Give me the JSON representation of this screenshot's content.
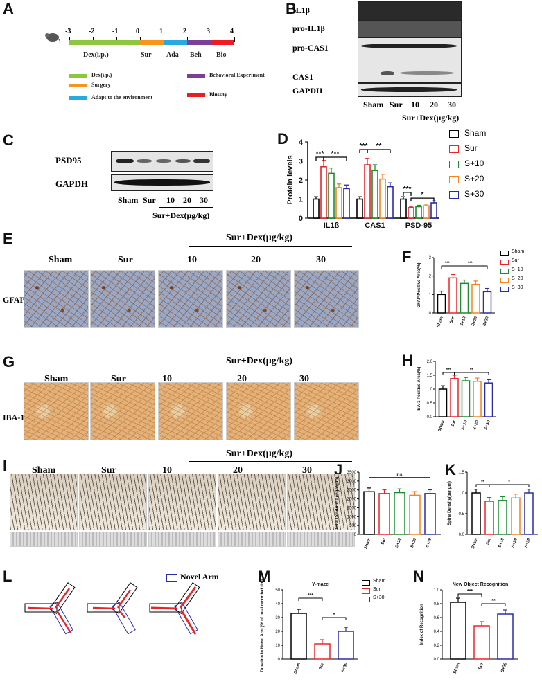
{
  "panels": {
    "A": "A",
    "B": "B",
    "C": "C",
    "D": "D",
    "E": "E",
    "F": "F",
    "G": "G",
    "H": "H",
    "I": "I",
    "J": "J",
    "K": "K",
    "L": "L",
    "M": "M",
    "N": "N"
  },
  "timeline": {
    "ticks": [
      "-3",
      "-2",
      "-1",
      "0",
      "1",
      "2",
      "3",
      "4"
    ],
    "phases": [
      "Dex(i.p.)",
      "Sur",
      "Ada",
      "Beh",
      "Bio"
    ],
    "legend": [
      "Dex(i.p.)",
      "Surgery",
      "Adapt to the environment",
      "Behavioral Experiment",
      "Biossay"
    ],
    "colors": [
      "#8dc63f",
      "#f7941d",
      "#27aae1",
      "#7b3f98",
      "#ed1c24"
    ]
  },
  "blotB": {
    "rows": [
      "IL1β",
      "pro-IL1β",
      "pro-CAS1",
      "CAS1",
      "GAPDH"
    ],
    "lanes": [
      "Sham",
      "Sur",
      "10",
      "20",
      "30"
    ],
    "group": "Sur+Dex(μg/kg)"
  },
  "blotC": {
    "rows": [
      "PSD95",
      "GAPDH"
    ],
    "lanes": [
      "Sham",
      "Sur",
      "10",
      "20",
      "30"
    ],
    "group": "Sur+Dex(μg/kg)"
  },
  "series_names": [
    "Sham",
    "Sur",
    "S+10",
    "S+20",
    "S+30"
  ],
  "series_colors": [
    "#000000",
    "#e8262a",
    "#1e8c2e",
    "#f58220",
    "#2b2ba8"
  ],
  "images": {
    "cols": [
      "Sham",
      "Sur",
      "10",
      "20",
      "30"
    ],
    "group": "Sur+Dex(μg/kg)",
    "gfap_label": "GFAP",
    "iba_label": "IBA-1"
  },
  "L": {
    "legend": "Novel Arm"
  },
  "chart_data": [
    {
      "panel": "D",
      "type": "bar",
      "ylabel": "Protein levels",
      "categories": [
        "IL1β",
        "CAS1",
        "PSD-95"
      ],
      "ylim": [
        0,
        4
      ],
      "yticks": [
        "0",
        "1",
        "2",
        "3",
        "4"
      ],
      "series": [
        {
          "name": "Sham",
          "values": [
            1.0,
            1.0,
            1.0
          ]
        },
        {
          "name": "Sur",
          "values": [
            2.7,
            2.8,
            0.55
          ]
        },
        {
          "name": "S+10",
          "values": [
            2.35,
            2.5,
            0.6
          ]
        },
        {
          "name": "S+20",
          "values": [
            1.6,
            2.05,
            0.65
          ]
        },
        {
          "name": "S+30",
          "values": [
            1.55,
            1.65,
            0.8
          ]
        }
      ],
      "sig": [
        "***",
        "***",
        "***",
        "**",
        "***",
        "*"
      ]
    },
    {
      "panel": "F",
      "type": "bar",
      "ylabel": "GFAP Positive Area(%)",
      "categories": [
        "Sham",
        "Sur",
        "S+10",
        "S+20",
        "S+30"
      ],
      "values": [
        1.0,
        1.9,
        1.6,
        1.55,
        1.15
      ],
      "ylim": [
        0,
        3
      ],
      "yticks": [
        "0",
        "1",
        "2",
        "3"
      ],
      "sig": [
        "***",
        "***"
      ]
    },
    {
      "panel": "H",
      "type": "bar",
      "ylabel": "IBA-1 Positive Area(%)",
      "categories": [
        "Sham",
        "Sur",
        "S+10",
        "S+20",
        "S+30"
      ],
      "values": [
        1.0,
        1.38,
        1.3,
        1.28,
        1.22
      ],
      "ylim": [
        0,
        2
      ],
      "yticks": [
        "0.0",
        "0.5",
        "1.0",
        "1.5",
        "2.0"
      ],
      "sig": [
        "***",
        "**"
      ]
    },
    {
      "panel": "J",
      "type": "bar",
      "ylabel": "Total Dendritic Lenght(μm)",
      "categories": [
        "Sham",
        "Sur",
        "S+10",
        "S+20",
        "S+30"
      ],
      "values": [
        2400,
        2300,
        2350,
        2200,
        2300
      ],
      "ylim": [
        0,
        3500
      ],
      "yticks": [
        "0",
        "500",
        "1000",
        "1500",
        "2000",
        "2500",
        "3000",
        "3500"
      ],
      "sig": [
        "ns"
      ]
    },
    {
      "panel": "K",
      "type": "bar",
      "ylabel": "Spine Density(per μm)",
      "categories": [
        "Sham",
        "Sur",
        "S+10",
        "S+20",
        "S+30"
      ],
      "values": [
        1.0,
        0.8,
        0.82,
        0.88,
        1.0
      ],
      "ylim": [
        0,
        1.5
      ],
      "yticks": [
        "0.0",
        "0.5",
        "1.0",
        "1.5"
      ],
      "sig": [
        "**",
        "*"
      ]
    },
    {
      "panel": "M",
      "type": "bar",
      "title": "Y-maze",
      "ylabel": "Duration in Novel Arm (% of total recorded time)",
      "categories": [
        "Sham",
        "Sur",
        "S+30"
      ],
      "values": [
        33,
        11,
        20
      ],
      "ylim": [
        0,
        50
      ],
      "yticks": [
        "0",
        "10",
        "20",
        "30",
        "40",
        "50"
      ],
      "sig": [
        "***",
        "*"
      ]
    },
    {
      "panel": "N",
      "type": "bar",
      "title": "New Object Recognition",
      "ylabel": "Index of Recognition",
      "categories": [
        "Sham",
        "Sur",
        "S+30"
      ],
      "values": [
        0.82,
        0.48,
        0.65
      ],
      "ylim": [
        0,
        1
      ],
      "yticks": [
        "0.0",
        "0.2",
        "0.4",
        "0.6",
        "0.8",
        "1.0"
      ],
      "sig": [
        "***",
        "**"
      ]
    }
  ]
}
